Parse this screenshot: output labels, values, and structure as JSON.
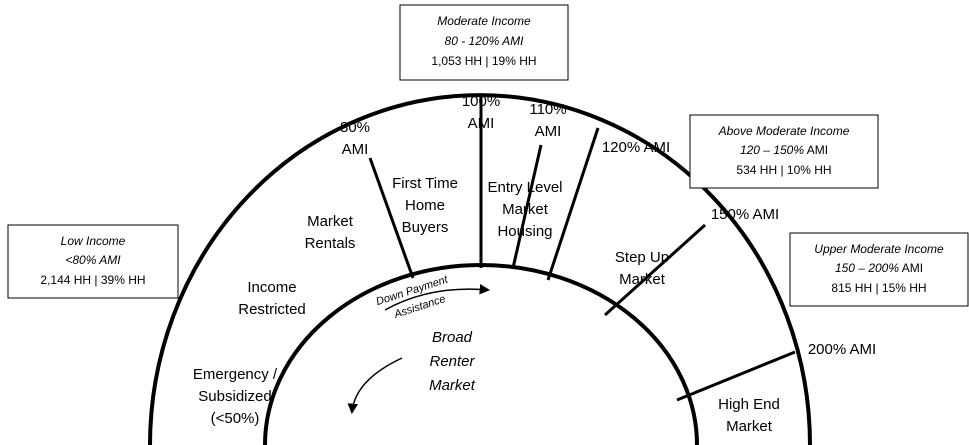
{
  "boxes": [
    {
      "title": "Moderate Income",
      "range": "80 - 120% AMI",
      "households": "1,053 HH | 19% HH"
    },
    {
      "title": "Low Income",
      "range": "<80% AMI",
      "households": "2,144 HH | 39% HH"
    },
    {
      "title": "Above Moderate Income",
      "range": "120 – 150%",
      "unit": "AMI",
      "households": "534 HH | 10% HH"
    },
    {
      "title": "Upper Moderate Income",
      "range": "150 – 200%",
      "unit": "AMI",
      "households": "815 HH | 15% HH"
    }
  ],
  "thresholds": [
    [
      "80%",
      "AMI"
    ],
    [
      "100%",
      "AMI"
    ],
    [
      "110%",
      "AMI"
    ],
    [
      "120% AMI"
    ],
    [
      "150% AMI"
    ],
    [
      "200% AMI"
    ]
  ],
  "segments": [
    [
      "Emergency /",
      "Subsidized",
      "(<50%)"
    ],
    [
      "Income",
      "Restricted"
    ],
    [
      "Market",
      "Rentals"
    ],
    [
      "First Time",
      "Home",
      "Buyers"
    ],
    [
      "Entry Level",
      "Market",
      "Housing"
    ],
    [
      "Step Up",
      "Market"
    ],
    [
      "High End",
      "Market"
    ]
  ],
  "inner": {
    "arrow_label": [
      "Down Payment",
      "Assistance"
    ],
    "center": [
      "Broad",
      "Renter",
      "Market"
    ]
  }
}
